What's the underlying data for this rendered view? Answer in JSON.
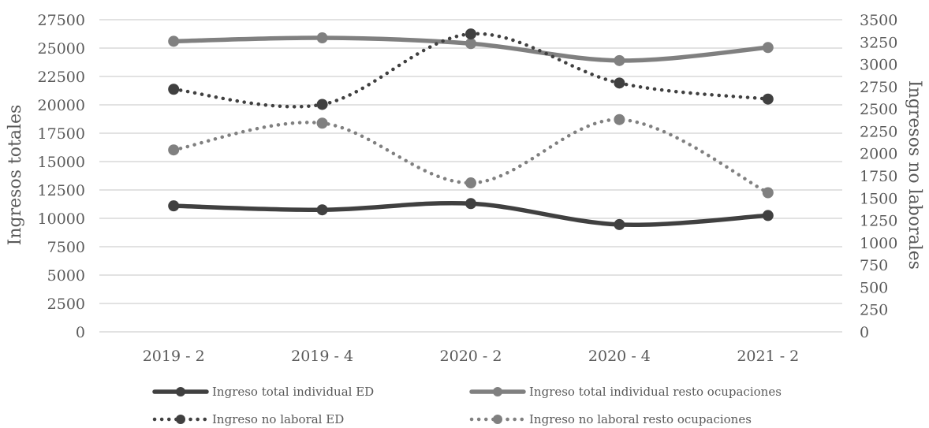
{
  "chart_data": {
    "type": "line",
    "categories": [
      "2019 - 2",
      "2019 - 4",
      "2020 - 2",
      "2020 - 4",
      "2021 - 2"
    ],
    "y_left": {
      "label": "Ingresos totales",
      "ylim": [
        0,
        27500
      ],
      "ticks": [
        0,
        2500,
        5000,
        7500,
        10000,
        12500,
        15000,
        17500,
        20000,
        22500,
        25000,
        27500
      ]
    },
    "y_right": {
      "label": "Ingresos no laborales",
      "ylim": [
        0,
        3500
      ],
      "ticks": [
        0,
        250,
        500,
        750,
        1000,
        1250,
        1500,
        1750,
        2000,
        2250,
        2500,
        2750,
        3000,
        3250,
        3500
      ]
    },
    "grid": true,
    "legend_position": "bottom",
    "series": [
      {
        "name": "Ingreso total individual ED",
        "axis": "left",
        "style": "solid",
        "color": "#404040",
        "values": [
          11100,
          10750,
          11300,
          9450,
          10250
        ]
      },
      {
        "name": "Ingreso total individual resto ocupaciones",
        "axis": "left",
        "style": "solid",
        "color": "#808080",
        "values": [
          25600,
          25900,
          25400,
          23900,
          25050
        ]
      },
      {
        "name": "Ingreso no laboral ED",
        "axis": "right",
        "style": "dotted",
        "color": "#404040",
        "values": [
          2720,
          2550,
          3340,
          2790,
          2610
        ]
      },
      {
        "name": "Ingreso no laboral resto ocupaciones",
        "axis": "right",
        "style": "dotted",
        "color": "#808080",
        "values": [
          2040,
          2340,
          1670,
          2380,
          1560
        ]
      }
    ]
  }
}
